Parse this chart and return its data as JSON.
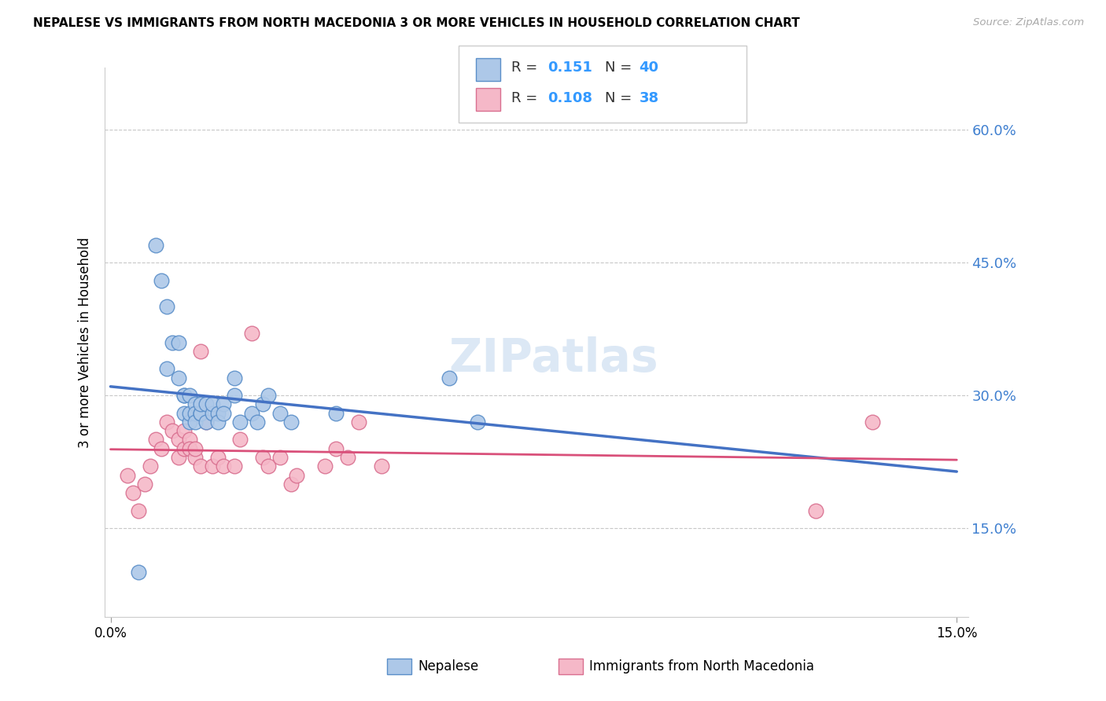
{
  "title": "NEPALESE VS IMMIGRANTS FROM NORTH MACEDONIA 3 OR MORE VEHICLES IN HOUSEHOLD CORRELATION CHART",
  "source": "Source: ZipAtlas.com",
  "ylabel_label": "3 or more Vehicles in Household",
  "yticks": [
    "15.0%",
    "30.0%",
    "45.0%",
    "60.0%"
  ],
  "ytick_vals": [
    0.15,
    0.3,
    0.45,
    0.6
  ],
  "xlim": [
    0.0,
    0.15
  ],
  "ylim": [
    0.05,
    0.67
  ],
  "legend_R1": "0.151",
  "legend_N1": "40",
  "legend_R2": "0.108",
  "legend_N2": "38",
  "nepalese_color": "#adc8e8",
  "nepalese_edge": "#5b8fc9",
  "north_mac_color": "#f5b8c8",
  "north_mac_edge": "#d97090",
  "trend1_color": "#4472c4",
  "trend2_color": "#d9507a",
  "watermark_color": "#dce8f5",
  "nepalese_x": [
    0.005,
    0.008,
    0.009,
    0.01,
    0.01,
    0.011,
    0.012,
    0.012,
    0.013,
    0.013,
    0.013,
    0.014,
    0.014,
    0.014,
    0.015,
    0.015,
    0.015,
    0.016,
    0.016,
    0.016,
    0.017,
    0.017,
    0.018,
    0.018,
    0.019,
    0.019,
    0.02,
    0.02,
    0.022,
    0.022,
    0.023,
    0.025,
    0.026,
    0.027,
    0.028,
    0.03,
    0.032,
    0.04,
    0.06,
    0.065
  ],
  "nepalese_y": [
    0.1,
    0.47,
    0.43,
    0.33,
    0.4,
    0.36,
    0.32,
    0.36,
    0.3,
    0.3,
    0.28,
    0.27,
    0.28,
    0.3,
    0.29,
    0.28,
    0.27,
    0.28,
    0.28,
    0.29,
    0.27,
    0.29,
    0.28,
    0.29,
    0.28,
    0.27,
    0.29,
    0.28,
    0.3,
    0.32,
    0.27,
    0.28,
    0.27,
    0.29,
    0.3,
    0.28,
    0.27,
    0.28,
    0.32,
    0.27
  ],
  "north_mac_x": [
    0.003,
    0.004,
    0.005,
    0.006,
    0.007,
    0.008,
    0.009,
    0.01,
    0.011,
    0.012,
    0.012,
    0.013,
    0.013,
    0.014,
    0.014,
    0.015,
    0.015,
    0.016,
    0.016,
    0.017,
    0.018,
    0.019,
    0.02,
    0.022,
    0.023,
    0.025,
    0.027,
    0.028,
    0.03,
    0.032,
    0.033,
    0.038,
    0.04,
    0.042,
    0.044,
    0.048,
    0.125,
    0.135
  ],
  "north_mac_y": [
    0.21,
    0.19,
    0.17,
    0.2,
    0.22,
    0.25,
    0.24,
    0.27,
    0.26,
    0.25,
    0.23,
    0.24,
    0.26,
    0.25,
    0.24,
    0.23,
    0.24,
    0.35,
    0.22,
    0.27,
    0.22,
    0.23,
    0.22,
    0.22,
    0.25,
    0.37,
    0.23,
    0.22,
    0.23,
    0.2,
    0.21,
    0.22,
    0.24,
    0.23,
    0.27,
    0.22,
    0.17,
    0.27
  ]
}
